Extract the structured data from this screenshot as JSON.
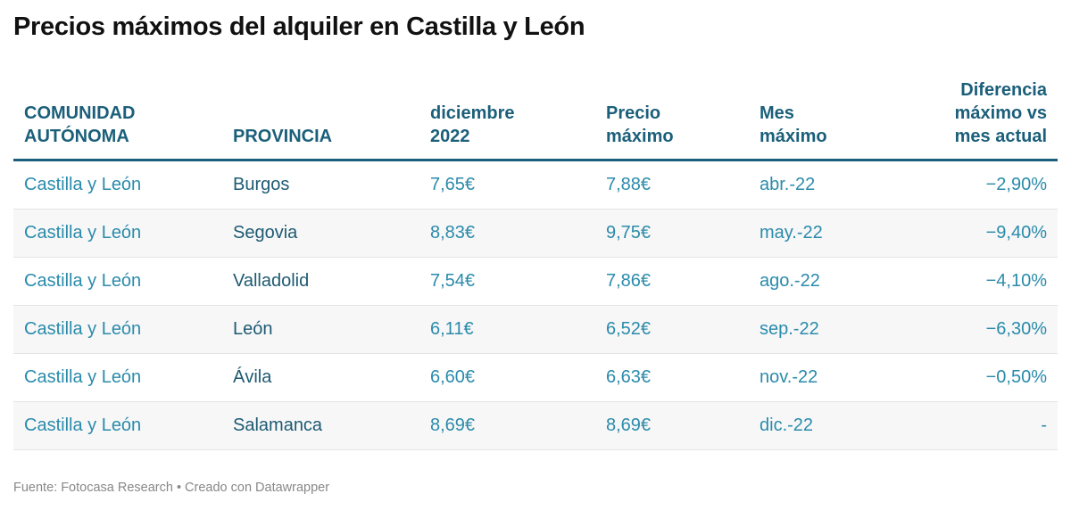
{
  "title": "Precios máximos del alquiler en Castilla y León",
  "table": {
    "headers": [
      "COMUNIDAD\nAUTÓNOMA",
      "PROVINCIA",
      "diciembre\n2022",
      "Precio\nmáximo",
      "Mes\nmáximo",
      "Diferencia\nmáximo vs\nmes actual"
    ],
    "rows": [
      [
        "Castilla y León",
        "Burgos",
        "7,65€",
        "7,88€",
        "abr.-22",
        "−2,90%"
      ],
      [
        "Castilla y León",
        "Segovia",
        "8,83€",
        "9,75€",
        "may.-22",
        "−9,40%"
      ],
      [
        "Castilla y León",
        "Valladolid",
        "7,54€",
        "7,86€",
        "ago.-22",
        "−4,10%"
      ],
      [
        "Castilla y León",
        "León",
        "6,11€",
        "6,52€",
        "sep.-22",
        "−6,30%"
      ],
      [
        "Castilla y León",
        "Ávila",
        "6,60€",
        "6,63€",
        "nov.-22",
        "−0,50%"
      ],
      [
        "Castilla y León",
        "Salamanca",
        "8,69€",
        "8,69€",
        "dic.-22",
        "-"
      ]
    ]
  },
  "footer": "Fuente: Fotocasa Research • Creado con Datawrapper",
  "colors": {
    "header": "#1b5f7a",
    "cell": "#2a8bab",
    "stripe": "#f7f7f7"
  }
}
